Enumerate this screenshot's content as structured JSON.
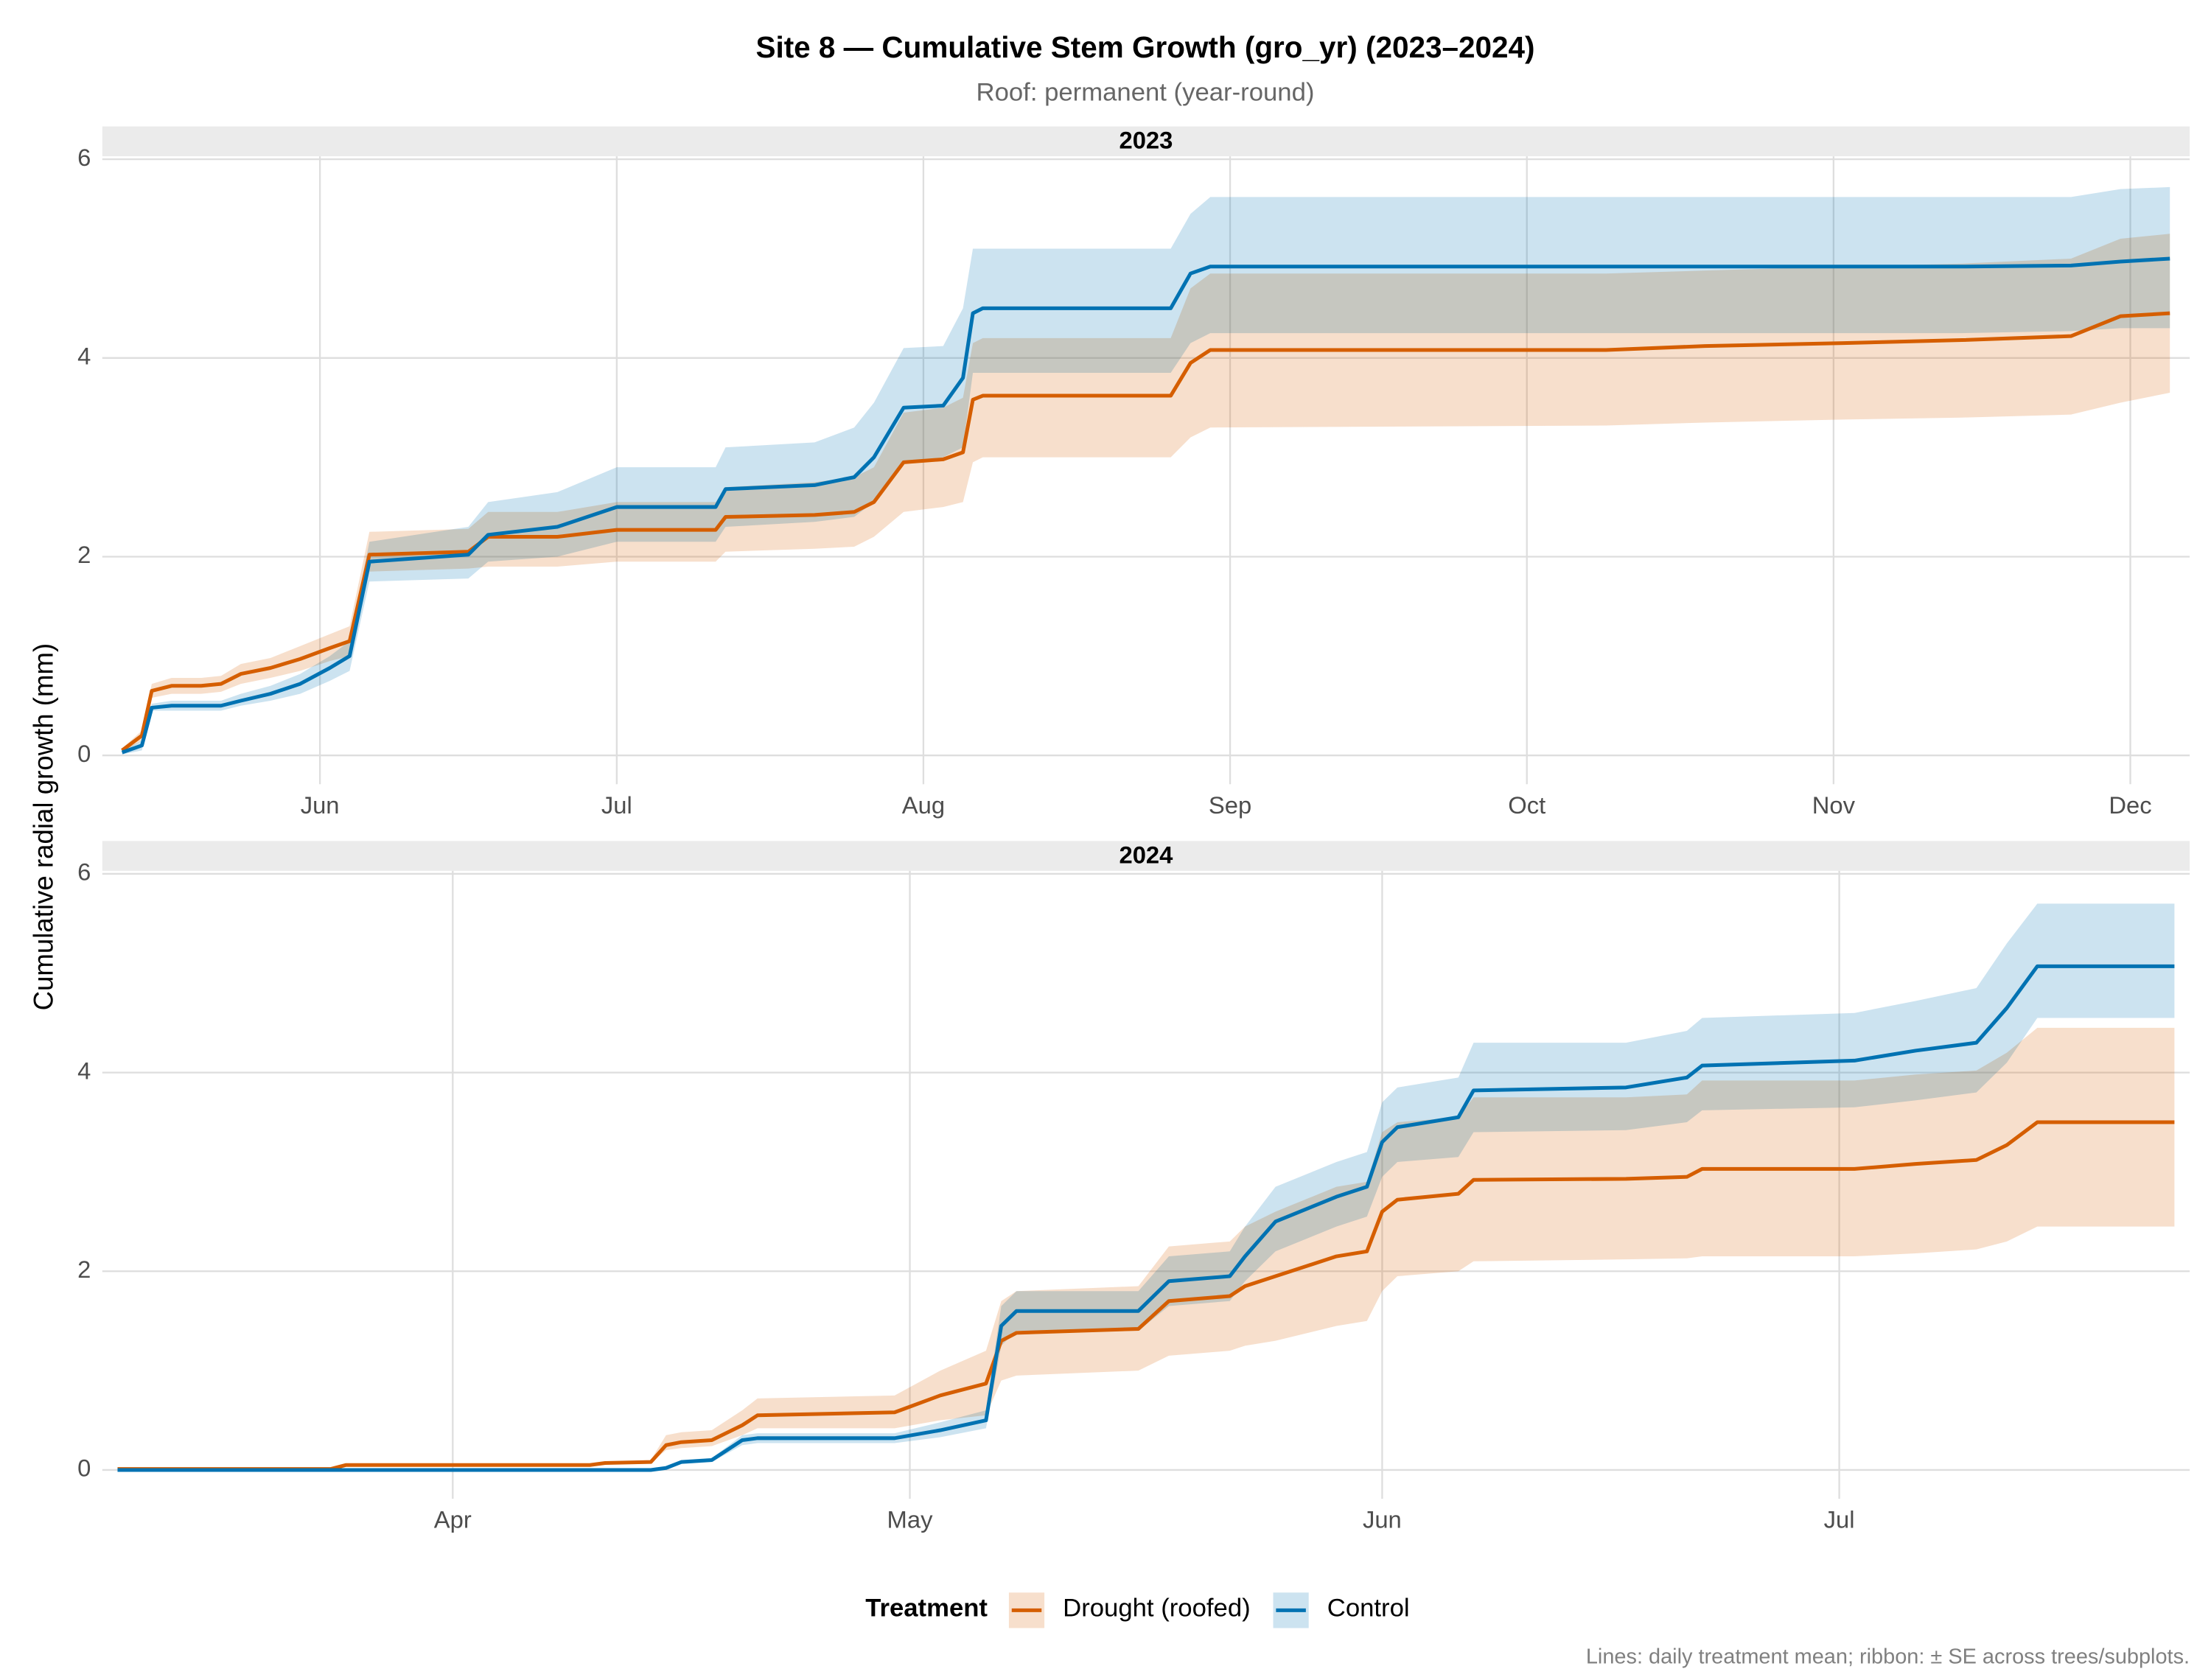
{
  "title": "Site 8 — Cumulative Stem Growth (gro_yr) (2023–2024)",
  "subtitle": "Roof: permanent (year-round)",
  "y_label": "Cumulative radial growth (mm)",
  "legend_title": "Treatment",
  "caption": "Lines: daily treatment mean; ribbon: ± SE across trees/subplots.",
  "chart_data": [
    {
      "type": "line",
      "panel": "2023",
      "x": [
        132,
        134,
        135,
        137,
        140,
        142,
        144,
        147,
        150,
        153,
        155,
        157,
        167,
        169,
        176,
        182,
        192,
        193,
        202,
        206,
        208,
        211,
        215,
        217,
        218,
        219,
        238,
        240,
        242,
        282,
        292,
        306,
        318,
        329,
        334,
        339
      ],
      "xlim": [
        130,
        341
      ],
      "xticks": [
        {
          "value": 152,
          "label": "Jun"
        },
        {
          "value": 182,
          "label": "Jul"
        },
        {
          "value": 213,
          "label": "Aug"
        },
        {
          "value": 244,
          "label": "Sep"
        },
        {
          "value": 274,
          "label": "Oct"
        },
        {
          "value": 305,
          "label": "Nov"
        },
        {
          "value": 335,
          "label": "Dec"
        }
      ],
      "ylim": [
        -0.29,
        6.03
      ],
      "yticks": [
        0,
        2,
        4,
        6
      ],
      "grid": true,
      "series": [
        {
          "name": "Drought (roofed)",
          "color": "#d55e00",
          "values": [
            0.05,
            0.2,
            0.65,
            0.7,
            0.7,
            0.72,
            0.82,
            0.88,
            0.97,
            1.08,
            1.15,
            2.02,
            2.05,
            2.2,
            2.2,
            2.27,
            2.27,
            2.4,
            2.42,
            2.45,
            2.55,
            2.95,
            2.98,
            3.05,
            3.58,
            3.62,
            3.62,
            3.95,
            4.08,
            4.08,
            4.12,
            4.15,
            4.18,
            4.22,
            4.42,
            4.45
          ],
          "lower": [
            0.03,
            0.15,
            0.58,
            0.62,
            0.62,
            0.64,
            0.72,
            0.78,
            0.85,
            0.95,
            1.0,
            1.85,
            1.88,
            1.9,
            1.9,
            1.95,
            1.95,
            2.05,
            2.08,
            2.1,
            2.2,
            2.45,
            2.5,
            2.55,
            2.95,
            3.0,
            3.0,
            3.2,
            3.3,
            3.32,
            3.35,
            3.38,
            3.4,
            3.43,
            3.55,
            3.65
          ],
          "upper": [
            0.07,
            0.25,
            0.72,
            0.78,
            0.78,
            0.8,
            0.92,
            0.98,
            1.1,
            1.22,
            1.3,
            2.25,
            2.28,
            2.45,
            2.45,
            2.55,
            2.55,
            2.7,
            2.75,
            2.8,
            2.9,
            3.45,
            3.5,
            3.6,
            4.15,
            4.2,
            4.2,
            4.7,
            4.85,
            4.85,
            4.88,
            4.92,
            4.95,
            5.0,
            5.2,
            5.25
          ]
        },
        {
          "name": "Control",
          "color": "#0072b2",
          "values": [
            0.03,
            0.1,
            0.48,
            0.5,
            0.5,
            0.5,
            0.55,
            0.62,
            0.72,
            0.88,
            1.0,
            1.95,
            2.02,
            2.22,
            2.3,
            2.5,
            2.5,
            2.68,
            2.72,
            2.8,
            3.0,
            3.5,
            3.52,
            3.8,
            4.45,
            4.5,
            4.5,
            4.85,
            4.92,
            4.92,
            4.92,
            4.92,
            4.92,
            4.93,
            4.97,
            5.0
          ],
          "lower": [
            0.01,
            0.05,
            0.45,
            0.45,
            0.45,
            0.45,
            0.5,
            0.55,
            0.62,
            0.75,
            0.85,
            1.75,
            1.78,
            1.95,
            2.0,
            2.15,
            2.15,
            2.3,
            2.35,
            2.4,
            2.55,
            2.95,
            3.0,
            3.1,
            3.85,
            3.85,
            3.85,
            4.15,
            4.25,
            4.25,
            4.25,
            4.25,
            4.25,
            4.27,
            4.3,
            4.3
          ],
          "upper": [
            0.05,
            0.15,
            0.52,
            0.55,
            0.55,
            0.55,
            0.62,
            0.7,
            0.82,
            1.0,
            1.15,
            2.15,
            2.3,
            2.55,
            2.65,
            2.9,
            2.9,
            3.1,
            3.15,
            3.3,
            3.55,
            4.1,
            4.12,
            4.5,
            5.1,
            5.1,
            5.1,
            5.45,
            5.62,
            5.62,
            5.62,
            5.62,
            5.62,
            5.62,
            5.7,
            5.72
          ]
        }
      ]
    },
    {
      "type": "line",
      "panel": "2024",
      "x": [
        70,
        84,
        85,
        101,
        102,
        105,
        106,
        107,
        109,
        111,
        112,
        121,
        124,
        127,
        128,
        129,
        137,
        139,
        143,
        144,
        146,
        150,
        152,
        153,
        154,
        158,
        159,
        169,
        173,
        174,
        184,
        188,
        192,
        194,
        196,
        205
      ],
      "xlim": [
        69,
        206
      ],
      "xticks": [
        {
          "value": 92,
          "label": "Apr"
        },
        {
          "value": 122,
          "label": "May"
        },
        {
          "value": 153,
          "label": "Jun"
        },
        {
          "value": 183,
          "label": "Jul"
        }
      ],
      "ylim": [
        -0.29,
        6.03
      ],
      "yticks": [
        0,
        2,
        4,
        6
      ],
      "grid": true,
      "series": [
        {
          "name": "Drought (roofed)",
          "color": "#d55e00",
          "values": [
            0.01,
            0.01,
            0.05,
            0.05,
            0.07,
            0.08,
            0.25,
            0.28,
            0.3,
            0.45,
            0.55,
            0.58,
            0.75,
            0.87,
            1.3,
            1.38,
            1.42,
            1.7,
            1.75,
            1.85,
            1.95,
            2.15,
            2.2,
            2.6,
            2.72,
            2.78,
            2.92,
            2.93,
            2.95,
            3.03,
            3.03,
            3.08,
            3.12,
            3.27,
            3.5,
            3.5
          ],
          "lower": [
            0,
            0,
            0.04,
            0.04,
            0.06,
            0.07,
            0.2,
            0.22,
            0.24,
            0.35,
            0.42,
            0.42,
            0.5,
            0.55,
            0.9,
            0.95,
            1.0,
            1.15,
            1.2,
            1.25,
            1.3,
            1.45,
            1.5,
            1.8,
            1.95,
            2.0,
            2.1,
            2.12,
            2.13,
            2.15,
            2.15,
            2.18,
            2.22,
            2.3,
            2.45,
            2.45
          ],
          "upper": [
            0.02,
            0.02,
            0.06,
            0.06,
            0.08,
            0.1,
            0.35,
            0.38,
            0.4,
            0.6,
            0.72,
            0.75,
            1.0,
            1.2,
            1.7,
            1.8,
            1.85,
            2.25,
            2.3,
            2.45,
            2.6,
            2.85,
            2.9,
            3.4,
            3.5,
            3.55,
            3.75,
            3.75,
            3.78,
            3.92,
            3.92,
            3.98,
            4.02,
            4.2,
            4.45,
            4.45
          ]
        },
        {
          "name": "Control",
          "color": "#0072b2",
          "values": [
            0,
            0,
            0,
            0,
            0,
            0,
            0.02,
            0.08,
            0.1,
            0.3,
            0.32,
            0.32,
            0.4,
            0.5,
            1.45,
            1.6,
            1.6,
            1.9,
            1.95,
            2.15,
            2.5,
            2.75,
            2.85,
            3.3,
            3.45,
            3.55,
            3.82,
            3.85,
            3.95,
            4.07,
            4.12,
            4.22,
            4.3,
            4.65,
            5.07,
            5.07
          ],
          "lower": [
            0,
            0,
            0,
            0,
            0,
            0,
            0.01,
            0.06,
            0.08,
            0.25,
            0.27,
            0.27,
            0.33,
            0.42,
            1.25,
            1.4,
            1.4,
            1.65,
            1.7,
            1.9,
            2.2,
            2.45,
            2.55,
            2.95,
            3.1,
            3.15,
            3.4,
            3.42,
            3.5,
            3.62,
            3.65,
            3.72,
            3.8,
            4.1,
            4.55,
            4.55
          ],
          "upper": [
            0,
            0,
            0,
            0,
            0,
            0,
            0.03,
            0.1,
            0.12,
            0.35,
            0.37,
            0.37,
            0.48,
            0.6,
            1.65,
            1.8,
            1.8,
            2.15,
            2.2,
            2.45,
            2.85,
            3.1,
            3.2,
            3.7,
            3.85,
            3.95,
            4.3,
            4.3,
            4.42,
            4.55,
            4.6,
            4.72,
            4.85,
            5.3,
            5.7,
            5.7
          ]
        }
      ]
    }
  ]
}
